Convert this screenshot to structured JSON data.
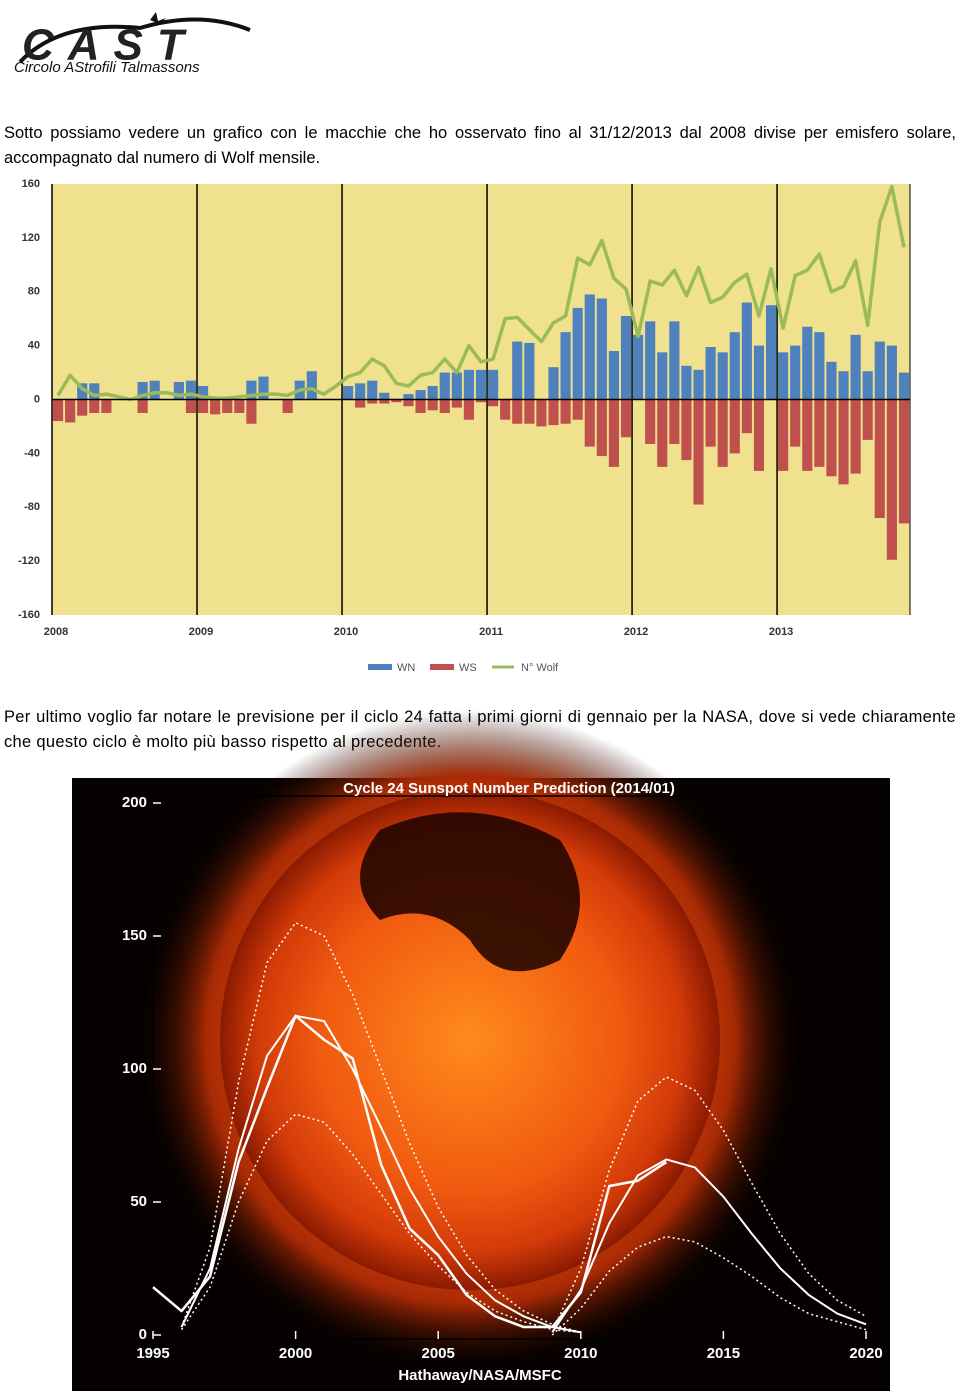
{
  "header": {
    "logo_mark": "CAST",
    "logo_text": "Circolo AStrofili Talmassons"
  },
  "paragraphs": [
    "Sotto possiamo vedere un grafico con le macchie che ho osservato fino al 31/12/2013 dal 2008 divise per emisfero solare, accompagnato dal numero di Wolf mensile.",
    "Per ultimo voglio far notare le previsione per il ciclo 24 fatta i primi giorni di gennaio per la NASA, dove si vede chiaramente che questo ciclo è molto più basso rispetto al precedente."
  ],
  "chart_data": [
    {
      "type": "bar",
      "xlim": [
        0,
        71
      ],
      "xticks": [
        {
          "value": 0,
          "label": "2008"
        },
        {
          "value": 12,
          "label": "2009"
        },
        {
          "value": 24,
          "label": "2010"
        },
        {
          "value": 36,
          "label": "2011"
        },
        {
          "value": 48,
          "label": "2012"
        },
        {
          "value": 60,
          "label": "2013"
        }
      ],
      "ylim": [
        -160,
        160
      ],
      "yticks": [
        -160,
        -120,
        -80,
        -40,
        0,
        40,
        80,
        120,
        160
      ],
      "background": "#efe18e",
      "legend": "bottom",
      "series": [
        {
          "name": "WN",
          "color": "#4f81bd",
          "values": [
            0,
            0,
            12,
            12,
            0,
            0,
            0,
            13,
            14,
            0,
            13,
            14,
            10,
            0,
            0,
            0,
            14,
            17,
            0,
            0,
            14,
            21,
            0,
            0,
            10,
            12,
            14,
            5,
            0,
            4,
            7,
            10,
            20,
            20,
            22,
            22,
            22,
            0,
            43,
            42,
            0,
            24,
            50,
            68,
            78,
            75,
            36,
            62,
            48,
            58,
            35,
            58,
            25,
            22,
            39,
            35,
            50,
            72,
            40,
            70,
            35,
            40,
            54,
            50,
            28,
            21,
            48,
            21,
            43,
            40,
            20
          ]
        },
        {
          "name": "WS",
          "color": "#c0504d",
          "values": [
            -16,
            -17,
            -12,
            -10,
            -10,
            0,
            0,
            -10,
            0,
            0,
            0,
            -10,
            -10,
            -11,
            -10,
            -10,
            -18,
            0,
            0,
            -10,
            0,
            0,
            0,
            0,
            0,
            -6,
            -3,
            -3,
            -2,
            -5,
            -10,
            -8,
            -10,
            -6,
            -15,
            -2,
            -5,
            -15,
            -18,
            -18,
            -20,
            -19,
            -18,
            -15,
            -35,
            -42,
            -50,
            -28,
            0,
            -33,
            -50,
            -33,
            -45,
            -78,
            -35,
            -50,
            -40,
            -25,
            -53,
            0,
            -53,
            -35,
            -53,
            -50,
            -57,
            -63,
            -55,
            -30,
            -88,
            -119,
            -92
          ]
        },
        {
          "name": "N° Wolf",
          "color": "#9bbb59",
          "type": "line",
          "values": [
            3,
            18,
            8,
            3,
            4,
            2,
            0,
            3,
            5,
            5,
            3,
            4,
            2,
            1,
            1,
            2,
            3,
            4,
            4,
            3,
            7,
            8,
            4,
            10,
            17,
            20,
            30,
            25,
            12,
            10,
            18,
            20,
            30,
            20,
            40,
            28,
            30,
            60,
            61,
            52,
            43,
            57,
            62,
            105,
            100,
            118,
            90,
            82,
            47,
            88,
            85,
            96,
            77,
            98,
            72,
            76,
            87,
            93,
            62,
            97,
            53,
            92,
            96,
            108,
            80,
            84,
            103,
            55,
            132,
            158,
            113
          ]
        }
      ]
    },
    {
      "type": "line",
      "title": "Cycle 24 Sunspot Number Prediction (2014/01)",
      "footer": "Hathaway/NASA/MSFC",
      "x": [
        1995,
        1996,
        1997,
        1998,
        1999,
        2000,
        2001,
        2002,
        2003,
        2004,
        2005,
        2006,
        2007,
        2008,
        2009,
        2010,
        2011,
        2012,
        2013,
        2014,
        2015,
        2016,
        2017,
        2018,
        2019,
        2020
      ],
      "xlim": [
        1995,
        2020
      ],
      "xticks": [
        1995,
        2000,
        2005,
        2010,
        2015,
        2020
      ],
      "ylim": [
        0,
        200
      ],
      "yticks": [
        0,
        50,
        100,
        150,
        200
      ],
      "series": [
        {
          "color": "#ffffff",
          "width": 2.5,
          "values": [
            18,
            9,
            22,
            65,
            93,
            120,
            111,
            104,
            64,
            40,
            30,
            15,
            7,
            3,
            3,
            16,
            56,
            58,
            65,
            null,
            null,
            null,
            null,
            null,
            null,
            null
          ]
        },
        {
          "color": "#ffffff",
          "width": 2,
          "values": [
            null,
            3,
            25,
            70,
            105,
            120,
            118,
            100,
            78,
            55,
            37,
            23,
            13,
            7,
            3,
            1,
            null,
            null,
            null,
            null,
            null,
            null,
            null,
            null,
            null,
            null
          ]
        },
        {
          "color": "#ffffff",
          "width": 1.5,
          "dashed": true,
          "values": [
            null,
            3,
            33,
            95,
            140,
            155,
            150,
            128,
            100,
            72,
            48,
            30,
            17,
            9,
            4,
            1,
            null,
            null,
            null,
            null,
            null,
            null,
            null,
            null,
            null,
            null
          ]
        },
        {
          "color": "#ffffff",
          "width": 1.5,
          "dashed": true,
          "values": [
            null,
            2,
            18,
            50,
            73,
            83,
            80,
            68,
            53,
            38,
            26,
            16,
            9,
            5,
            2,
            1,
            null,
            null,
            null,
            null,
            null,
            null,
            null,
            null,
            null,
            null
          ]
        },
        {
          "color": "#ffffff",
          "width": 2,
          "values": [
            null,
            null,
            null,
            null,
            null,
            null,
            null,
            null,
            null,
            null,
            null,
            null,
            null,
            null,
            1,
            17,
            42,
            60,
            66,
            63,
            52,
            38,
            25,
            15,
            8,
            4
          ]
        },
        {
          "color": "#ffffff",
          "width": 1.5,
          "dashed": true,
          "values": [
            null,
            null,
            null,
            null,
            null,
            null,
            null,
            null,
            null,
            null,
            null,
            null,
            null,
            null,
            1,
            25,
            62,
            88,
            97,
            92,
            77,
            57,
            38,
            23,
            13,
            7
          ]
        },
        {
          "color": "#ffffff",
          "width": 1.5,
          "dashed": true,
          "values": [
            null,
            null,
            null,
            null,
            null,
            null,
            null,
            null,
            null,
            null,
            null,
            null,
            null,
            null,
            0,
            10,
            24,
            33,
            37,
            35,
            29,
            22,
            14,
            8,
            5,
            2
          ]
        }
      ]
    }
  ]
}
